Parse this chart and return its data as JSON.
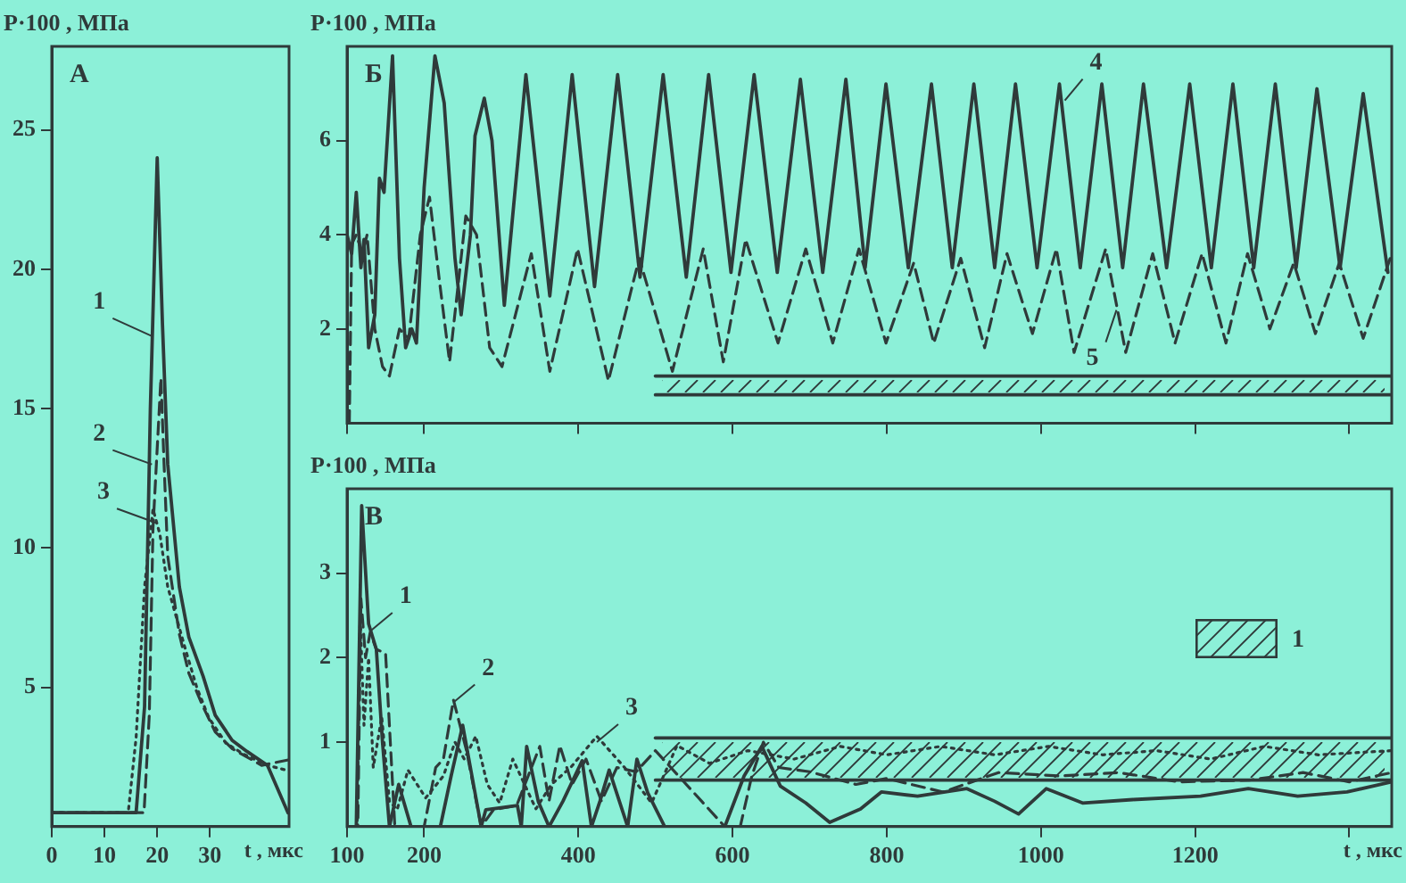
{
  "chart_data": [
    {
      "type": "line",
      "title": "А",
      "ylabel": "P·100 , МПа",
      "xlabel": "t , мкс",
      "xlim": [
        0,
        45
      ],
      "xticks": [
        0,
        10,
        20,
        30
      ],
      "ylim": [
        0,
        28
      ],
      "yticks": [
        5,
        10,
        15,
        20,
        25
      ],
      "marker": "none",
      "annotations": [
        {
          "text": "1",
          "x": 19,
          "y": 17.6
        },
        {
          "text": "2",
          "x": 19,
          "y": 13
        },
        {
          "text": "3",
          "x": 19.8,
          "y": 10.9
        }
      ],
      "series": [
        {
          "color": "#2f3a3a",
          "line_style": "solid",
          "x": [
            0,
            16,
            17.6,
            18.7,
            20,
            21,
            22,
            24.2,
            26,
            28.7,
            31,
            34.2,
            37,
            40.9,
            44.8
          ],
          "values": [
            0.5,
            0.5,
            4.3,
            15,
            24,
            18,
            13,
            8.6,
            6.8,
            5.4,
            4,
            3.1,
            2.7,
            2.2,
            0.5
          ]
        },
        {
          "color": "#2f3a3a",
          "line_style": "dashed",
          "x": [
            0,
            17.5,
            18.5,
            19.2,
            20.7,
            21.3,
            22,
            24.2,
            26,
            28.7,
            31,
            34.2,
            39.8,
            45
          ],
          "values": [
            0.5,
            0.5,
            4,
            10.7,
            16.1,
            13,
            9.7,
            6.9,
            5.5,
            4.3,
            3.4,
            2.8,
            2.2,
            2.4
          ]
        },
        {
          "color": "#2f3a3a",
          "line_style": "dotted",
          "x": [
            0,
            14.5,
            16,
            17.6,
            19.2,
            20.5,
            22,
            25.3,
            27.5,
            29.8,
            33,
            36.4,
            40.9,
            45
          ],
          "values": [
            0.5,
            0.5,
            3.2,
            8.6,
            11.4,
            10.5,
            8.6,
            6.4,
            5,
            3.9,
            3,
            2.6,
            2.2,
            2
          ]
        }
      ]
    },
    {
      "type": "line",
      "title": "Б",
      "ylabel": "P·100 , МПа",
      "xlim": [
        100,
        1455
      ],
      "xticks": [
        100,
        200,
        400,
        600,
        800,
        1000,
        1200,
        1400
      ],
      "ylim": [
        0,
        8
      ],
      "yticks": [
        2,
        4,
        6
      ],
      "tick_labels": "y",
      "marker": "none",
      "annotations": [
        {
          "text": "4",
          "x": 1031,
          "y": 6.85
        },
        {
          "text": "5",
          "x": 1098,
          "y": 2.4
        }
      ],
      "series": [
        {
          "color": "#2f3a3a",
          "line_style": "solid",
          "x": [
            100,
            106,
            112,
            118,
            122,
            128,
            136,
            142,
            148,
            159,
            168,
            176,
            184,
            190,
            200,
            214,
            226,
            240,
            248,
            260,
            266,
            278,
            288,
            304,
            332,
            363,
            392,
            421,
            451,
            480,
            510,
            540,
            569,
            598,
            628,
            658,
            688,
            717,
            747,
            772,
            799,
            828,
            858,
            885,
            913,
            940,
            967,
            995,
            1024,
            1051,
            1079,
            1106,
            1133,
            1163,
            1193,
            1221,
            1249,
            1276,
            1304,
            1331,
            1358,
            1388,
            1418,
            1450
          ],
          "values": [
            4.0,
            3.6,
            4.9,
            3.3,
            3.9,
            1.6,
            2.3,
            5.2,
            4.9,
            7.8,
            3.5,
            1.6,
            2.0,
            1.7,
            5.0,
            7.8,
            6.8,
            3.5,
            2.3,
            4.0,
            6.1,
            6.9,
            6.0,
            2.5,
            7.4,
            2.7,
            7.4,
            2.9,
            7.4,
            3.1,
            7.4,
            3.1,
            7.4,
            3.2,
            7.4,
            3.2,
            7.3,
            3.2,
            7.3,
            3.3,
            7.2,
            3.3,
            7.2,
            3.3,
            7.2,
            3.3,
            7.2,
            3.3,
            7.2,
            3.3,
            7.2,
            3.3,
            7.2,
            3.3,
            7.2,
            3.3,
            7.2,
            3.3,
            7.2,
            3.3,
            7.1,
            3.3,
            7.0,
            3.2
          ]
        },
        {
          "color": "#2f3a3a",
          "line_style": "dashed",
          "x": [
            103,
            106,
            112,
            120,
            126,
            136,
            146,
            155,
            168,
            180,
            195,
            207,
            220,
            233,
            254,
            268,
            285,
            301,
            339,
            363,
            399,
            439,
            479,
            522,
            562,
            588,
            617,
            659,
            695,
            730,
            764,
            799,
            835,
            861,
            896,
            927,
            956,
            989,
            1020,
            1043,
            1084,
            1110,
            1145,
            1174,
            1209,
            1240,
            1268,
            1297,
            1328,
            1356,
            1387,
            1418,
            1453
          ],
          "values": [
            0,
            3.8,
            4.0,
            3.6,
            4.0,
            2.0,
            1.2,
            1.0,
            2.0,
            1.8,
            4.0,
            4.8,
            3.0,
            1.3,
            4.4,
            4.0,
            1.6,
            1.2,
            3.6,
            1.1,
            3.7,
            0.9,
            3.5,
            1.1,
            3.7,
            1.3,
            3.9,
            1.7,
            3.7,
            1.7,
            3.7,
            1.7,
            3.4,
            1.7,
            3.5,
            1.6,
            3.6,
            1.9,
            3.7,
            1.5,
            3.7,
            1.5,
            3.6,
            1.7,
            3.6,
            1.7,
            3.6,
            2.0,
            3.4,
            1.9,
            3.4,
            1.8,
            3.5
          ]
        },
        {
          "color": "#2f3a3a",
          "line_style": "solid",
          "x": [
            500,
            1455
          ],
          "values": [
            0.6,
            0.6
          ]
        },
        {
          "color": "#2f3a3a",
          "line_style": "solid",
          "x": [
            500,
            1455
          ],
          "values": [
            1.0,
            1.0
          ]
        }
      ]
    },
    {
      "type": "line",
      "title": "В",
      "ylabel": "P·100 , МПа",
      "xlabel": "t , мкс",
      "xlim": [
        100,
        1455
      ],
      "xticks": [
        100,
        200,
        400,
        600,
        800,
        1000,
        1200,
        {
          "value": 1400,
          "label": null
        }
      ],
      "ylim": [
        0,
        4
      ],
      "yticks": [
        1,
        2,
        3
      ],
      "marker": "none",
      "legend": "right",
      "annotations": [
        {
          "text": "1",
          "x": 131,
          "y": 2.32
        },
        {
          "text": "2",
          "x": 238,
          "y": 1.47
        },
        {
          "text": "3",
          "x": 424,
          "y": 1.0
        }
      ],
      "series": [
        {
          "color": "#2f3a3a",
          "line_style": "solid",
          "x": [
            100,
            112,
            119,
            128,
            138,
            146,
            155,
            167,
            183,
            221,
            235,
            250,
            262,
            274,
            280,
            321,
            326,
            333,
            348,
            362,
            380,
            405,
            417,
            428,
            440,
            464,
            476,
            490,
            512,
            590,
            615,
            638,
            662,
            695,
            726,
            766,
            793,
            840,
            904,
            940,
            971,
            1007,
            1054,
            1119,
            1207,
            1269,
            1333,
            1397,
            1455
          ],
          "values": [
            0,
            0,
            3.8,
            2.4,
            2.1,
            1.0,
            0,
            0.5,
            0,
            0,
            0.6,
            1.2,
            0.6,
            0,
            0.2,
            0.25,
            0,
            0.95,
            0.3,
            0,
            0.3,
            0.78,
            0,
            0.3,
            0.67,
            0,
            0.8,
            0.4,
            0,
            0,
            0.6,
            0.95,
            0.48,
            0.28,
            0.05,
            0.21,
            0.41,
            0.36,
            0.45,
            0.3,
            0.15,
            0.45,
            0.28,
            0.32,
            0.36,
            0.45,
            0.36,
            0.41,
            0.53
          ]
        },
        {
          "color": "#2f3a3a",
          "line_style": "dashed",
          "x": [
            100,
            114,
            118,
            124,
            130,
            138,
            150,
            162,
            200,
            215,
            225,
            238,
            255,
            274,
            290,
            320,
            335,
            350,
            362,
            376,
            392,
            410,
            430,
            450,
            475,
            500,
            530,
            560,
            590,
            610,
            625,
            640,
            660,
            700,
            760,
            800,
            873,
            945,
            1023,
            1100,
            1180,
            1270,
            1340,
            1400,
            1455
          ],
          "values": [
            0,
            0,
            2.7,
            2.0,
            2.3,
            2.1,
            2.05,
            0,
            0,
            0.7,
            0.8,
            1.5,
            0.9,
            0,
            0.2,
            0.25,
            0.6,
            0.95,
            0.3,
            0.96,
            0.5,
            0.8,
            0.3,
            0.7,
            0.65,
            0.9,
            0.6,
            0.3,
            0,
            0,
            0.6,
            1.0,
            0.7,
            0.65,
            0.5,
            0.57,
            0.41,
            0.64,
            0.6,
            0.64,
            0.53,
            0.55,
            0.64,
            0.53,
            0.64
          ]
        },
        {
          "color": "#2f3a3a",
          "line_style": "dotted",
          "x": [
            100,
            113,
            117,
            122,
            128,
            134,
            145,
            155,
            165,
            179,
            202,
            225,
            240,
            252,
            267,
            282,
            298,
            315,
            345,
            365,
            390,
            424,
            460,
            495,
            528,
            570,
            620,
            680,
            740,
            800,
            870,
            940,
            1010,
            1080,
            1150,
            1220,
            1290,
            1360,
            1455
          ],
          "values": [
            0,
            0,
            2.5,
            1.2,
            2.0,
            0.7,
            1.3,
            0.3,
            0.2,
            0.67,
            0.34,
            0.6,
            1.0,
            0.8,
            1.07,
            0.5,
            0.28,
            0.8,
            0.21,
            0.5,
            0.7,
            1.07,
            0.7,
            0.28,
            0.96,
            0.75,
            0.9,
            0.8,
            0.95,
            0.85,
            0.95,
            0.85,
            0.95,
            0.85,
            0.9,
            0.8,
            0.95,
            0.85,
            0.9
          ]
        },
        {
          "color": "#2f3a3a",
          "line_style": "solid",
          "x": [
            500,
            1455
          ],
          "values": [
            0.55,
            0.55
          ]
        },
        {
          "name": "1",
          "color": "#2f3a3a",
          "line_style": "solid",
          "x": [
            500,
            1455
          ],
          "values": [
            1.05,
            1.05
          ]
        }
      ]
    }
  ]
}
